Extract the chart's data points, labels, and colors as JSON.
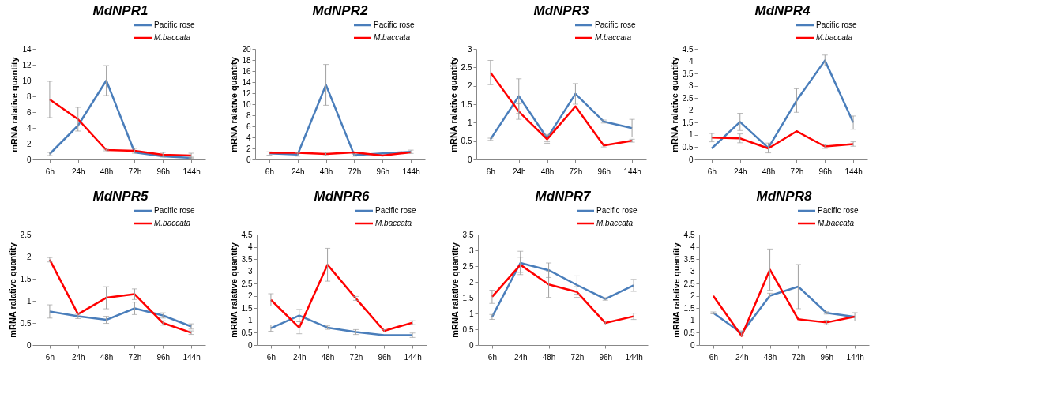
{
  "chart_data": [
    {
      "type": "line",
      "title": "MdNPR1",
      "ylabel": "mRNA ralative quantity",
      "categories": [
        "6h",
        "24h",
        "48h",
        "72h",
        "96h",
        "144h"
      ],
      "ylim": [
        0,
        14
      ],
      "yticks": [
        0,
        2,
        4,
        6,
        8,
        10,
        12,
        14
      ],
      "legend": "top right",
      "grid": false,
      "series": [
        {
          "name": "Pacific rose",
          "color": "#4a7ebb",
          "values": [
            0.7,
            4.3,
            10.0,
            0.9,
            0.4,
            0.2
          ],
          "errors": [
            0.2,
            null,
            1.9,
            null,
            null,
            0.1
          ]
        },
        {
          "name": "M.baccata",
          "color": "#ff0000",
          "values": [
            7.6,
            5.1,
            1.2,
            1.1,
            0.6,
            0.5
          ],
          "errors": [
            2.3,
            1.5,
            0.1,
            0.3,
            0.3,
            0.3
          ]
        }
      ]
    },
    {
      "type": "line",
      "title": "MdNPR2",
      "ylabel": "mRNA ralative quantity",
      "categories": [
        "6h",
        "24h",
        "48h",
        "72h",
        "96h",
        "144h"
      ],
      "ylim": [
        0,
        20
      ],
      "yticks": [
        0,
        2,
        4,
        6,
        8,
        10,
        12,
        14,
        16,
        18,
        20
      ],
      "legend": "top right",
      "grid": false,
      "series": [
        {
          "name": "Pacific rose",
          "color": "#4a7ebb",
          "values": [
            1.1,
            0.9,
            13.5,
            0.8,
            1.1,
            1.4
          ],
          "errors": [
            0.3,
            0.3,
            3.7,
            0.2,
            null,
            0.3
          ]
        },
        {
          "name": "M.baccata",
          "color": "#ff0000",
          "values": [
            1.2,
            1.2,
            1.0,
            1.3,
            0.7,
            1.3
          ],
          "errors": [
            null,
            null,
            0.3,
            null,
            null,
            null
          ]
        }
      ]
    },
    {
      "type": "line",
      "title": "MdNPR3",
      "ylabel": "mRNA ralative quantity",
      "categories": [
        "6h",
        "24h",
        "48h",
        "72h",
        "96h",
        "144h"
      ],
      "ylim": [
        0,
        3
      ],
      "yticks": [
        0,
        0.5,
        1,
        1.5,
        2,
        2.5,
        3
      ],
      "legend": "top right",
      "grid": false,
      "series": [
        {
          "name": "Pacific rose",
          "color": "#4a7ebb",
          "values": [
            0.55,
            1.72,
            0.58,
            1.78,
            1.03,
            0.85
          ],
          "errors": [
            0.03,
            0.47,
            0.1,
            0.28,
            0.04,
            0.24
          ]
        },
        {
          "name": "M.baccata",
          "color": "#ff0000",
          "values": [
            2.36,
            1.3,
            0.55,
            1.44,
            0.38,
            0.51
          ],
          "errors": [
            0.33,
            0.21,
            0.11,
            null,
            0.04,
            0.04
          ]
        }
      ]
    },
    {
      "type": "line",
      "title": "MdNPR4",
      "ylabel": "mRNA ralative quantity",
      "categories": [
        "6h",
        "24h",
        "48h",
        "72h",
        "96h",
        "144h"
      ],
      "ylim": [
        0,
        4.5
      ],
      "yticks": [
        0,
        0.5,
        1,
        1.5,
        2,
        2.5,
        3,
        3.5,
        4,
        4.5
      ],
      "legend": "top right",
      "grid": false,
      "series": [
        {
          "name": "Pacific rose",
          "color": "#4a7ebb",
          "values": [
            0.45,
            1.53,
            0.47,
            2.4,
            4.03,
            1.5
          ],
          "errors": [
            null,
            0.35,
            0.2,
            0.48,
            0.22,
            0.27
          ]
        },
        {
          "name": "M.baccata",
          "color": "#ff0000",
          "values": [
            0.89,
            0.86,
            0.45,
            1.15,
            0.53,
            0.63
          ],
          "errors": [
            0.17,
            0.18,
            null,
            null,
            0.08,
            0.09
          ]
        }
      ]
    },
    {
      "type": "line",
      "title": "MdNPR5",
      "ylabel": "mRNA ralative quantity",
      "categories": [
        "6h",
        "24h",
        "48h",
        "72h",
        "96h",
        "144h"
      ],
      "ylim": [
        0,
        2.5
      ],
      "yticks": [
        0,
        0.5,
        1,
        1.5,
        2,
        2.5
      ],
      "legend": "top right",
      "grid": false,
      "series": [
        {
          "name": "Pacific rose",
          "color": "#4a7ebb",
          "values": [
            0.76,
            0.65,
            0.57,
            0.83,
            0.67,
            0.42
          ],
          "errors": [
            0.15,
            0.05,
            0.08,
            0.14,
            0.06,
            0.06
          ]
        },
        {
          "name": "M.baccata",
          "color": "#ff0000",
          "values": [
            1.93,
            0.7,
            1.07,
            1.15,
            0.5,
            0.28
          ],
          "errors": [
            0.05,
            null,
            0.25,
            0.12,
            0.05,
            0.04
          ]
        }
      ]
    },
    {
      "type": "line",
      "title": "MdNPR6",
      "ylabel": "mRNA ralative quantity",
      "categories": [
        "6h",
        "24h",
        "48h",
        "72h",
        "96h",
        "144h"
      ],
      "ylim": [
        0,
        4.5
      ],
      "yticks": [
        0,
        0.5,
        1,
        1.5,
        2,
        2.5,
        3,
        3.5,
        4,
        4.5
      ],
      "legend": "top right",
      "grid": false,
      "series": [
        {
          "name": "Pacific rose",
          "color": "#4a7ebb",
          "values": [
            0.69,
            1.2,
            0.71,
            0.53,
            0.4,
            0.4
          ],
          "errors": [
            0.13,
            0.25,
            0.07,
            0.1,
            null,
            0.09
          ]
        },
        {
          "name": "M.baccata",
          "color": "#ff0000",
          "values": [
            1.84,
            0.71,
            3.27,
            1.9,
            0.58,
            0.91
          ],
          "errors": [
            0.25,
            0.25,
            0.67,
            0.08,
            0.05,
            0.08
          ]
        }
      ]
    },
    {
      "type": "line",
      "title": "MdNPR7",
      "ylabel": "mRNA ralative quantity",
      "categories": [
        "6h",
        "24h",
        "48h",
        "72h",
        "96h",
        "144h"
      ],
      "ylim": [
        0,
        3.5
      ],
      "yticks": [
        0,
        0.5,
        1,
        1.5,
        2,
        2.5,
        3,
        3.5
      ],
      "legend": "top right",
      "grid": false,
      "series": [
        {
          "name": "Pacific rose",
          "color": "#4a7ebb",
          "values": [
            0.89,
            2.6,
            2.37,
            1.9,
            1.46,
            1.89
          ],
          "errors": [
            0.08,
            0.37,
            0.23,
            0.29,
            0.04,
            0.19
          ]
        },
        {
          "name": "M.baccata",
          "color": "#ff0000",
          "values": [
            1.53,
            2.54,
            1.92,
            1.68,
            0.7,
            0.91
          ],
          "errors": [
            0.21,
            0.24,
            0.41,
            0.17,
            0.06,
            0.1
          ]
        }
      ]
    },
    {
      "type": "line",
      "title": "MdNPR8",
      "ylabel": "mRNA ralative quantity",
      "categories": [
        "6h",
        "24h",
        "48h",
        "72h",
        "96h",
        "144h"
      ],
      "ylim": [
        0,
        4.5
      ],
      "yticks": [
        0,
        0.5,
        1,
        1.5,
        2,
        2.5,
        3,
        3.5,
        4,
        4.5
      ],
      "legend": "top right",
      "grid": false,
      "series": [
        {
          "name": "Pacific rose",
          "color": "#4a7ebb",
          "values": [
            1.31,
            0.48,
            2.01,
            2.38,
            1.31,
            1.15
          ],
          "errors": [
            0.04,
            0.1,
            0.1,
            0.9,
            0.05,
            0.17
          ]
        },
        {
          "name": "M.baccata",
          "color": "#ff0000",
          "values": [
            2.0,
            0.37,
            3.07,
            1.05,
            0.92,
            1.16
          ],
          "errors": [
            null,
            null,
            0.84,
            null,
            0.09,
            null
          ]
        }
      ]
    }
  ]
}
